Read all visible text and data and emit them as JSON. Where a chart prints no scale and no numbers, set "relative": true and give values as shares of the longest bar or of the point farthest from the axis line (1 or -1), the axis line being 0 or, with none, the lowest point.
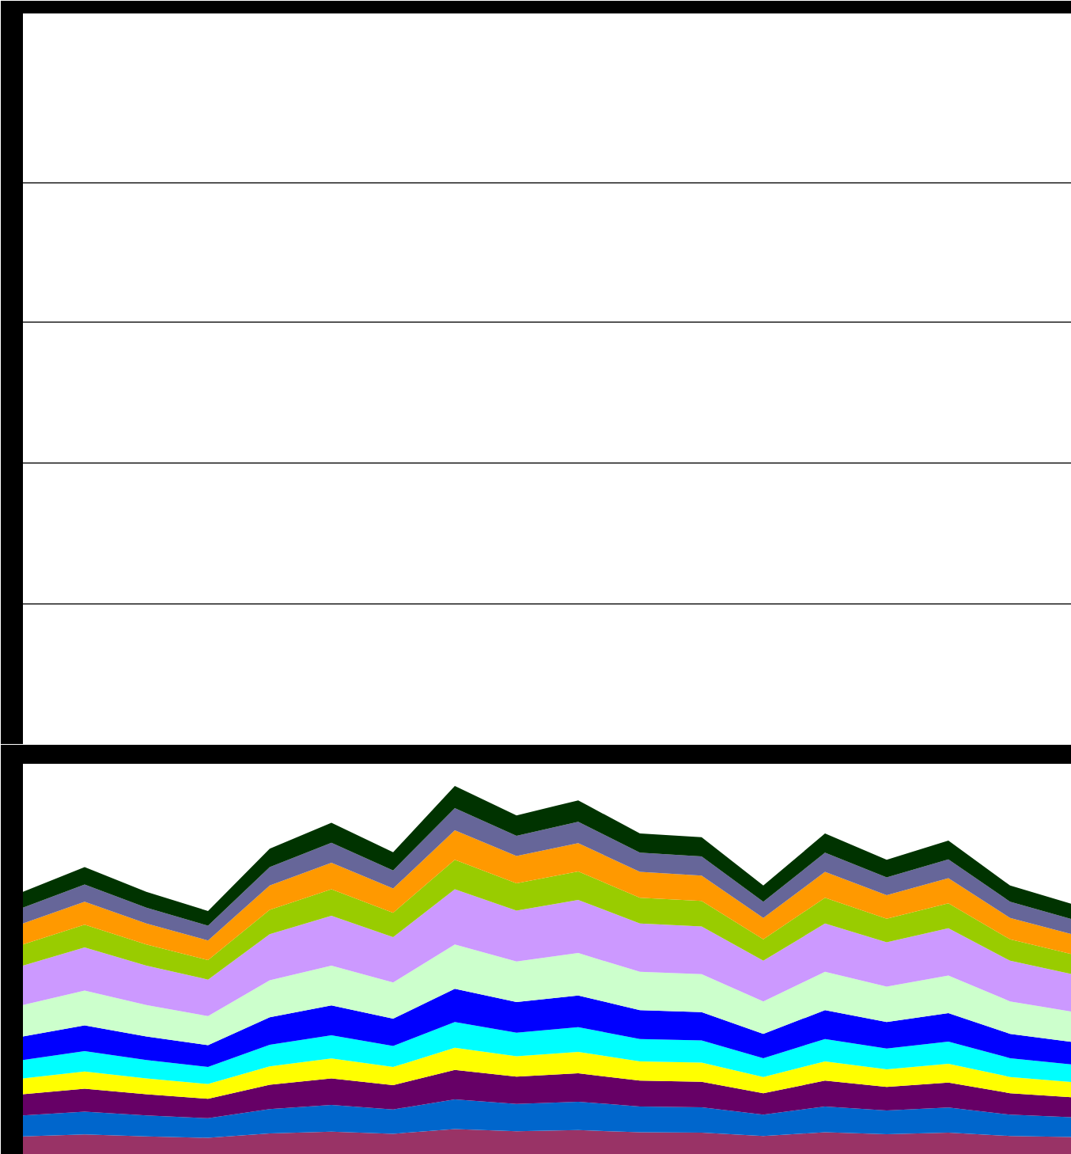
{
  "chart_data": [
    {
      "type": "other"
    },
    {
      "type": "area",
      "stacked": true,
      "relative": true,
      "categories": [
        null,
        null,
        null,
        null,
        null,
        null,
        null,
        null,
        null,
        null,
        null,
        null,
        null,
        null,
        null,
        null,
        null,
        null
      ],
      "series": [
        {
          "color": "#993366",
          "values": [
            0.05,
            0.055,
            0.05,
            0.046,
            0.058,
            0.063,
            0.057,
            0.07,
            0.064,
            0.067,
            0.061,
            0.06,
            0.051,
            0.061,
            0.056,
            0.06,
            0.051,
            0.048
          ]
        },
        {
          "color": "#0066cc",
          "values": [
            0.057,
            0.062,
            0.057,
            0.053,
            0.066,
            0.072,
            0.066,
            0.08,
            0.074,
            0.077,
            0.07,
            0.069,
            0.058,
            0.07,
            0.064,
            0.068,
            0.058,
            0.054
          ]
        },
        {
          "color": "#660066",
          "values": [
            0.057,
            0.062,
            0.057,
            0.053,
            0.066,
            0.072,
            0.066,
            0.08,
            0.074,
            0.077,
            0.07,
            0.069,
            0.058,
            0.07,
            0.064,
            0.068,
            0.058,
            0.054
          ]
        },
        {
          "color": "#ffff00",
          "values": [
            0.043,
            0.047,
            0.043,
            0.04,
            0.05,
            0.054,
            0.049,
            0.06,
            0.055,
            0.058,
            0.052,
            0.052,
            0.044,
            0.052,
            0.048,
            0.051,
            0.044,
            0.041
          ]
        },
        {
          "color": "#00ffff",
          "values": [
            0.05,
            0.055,
            0.05,
            0.046,
            0.058,
            0.063,
            0.057,
            0.07,
            0.064,
            0.067,
            0.061,
            0.06,
            0.051,
            0.061,
            0.056,
            0.06,
            0.051,
            0.048
          ]
        },
        {
          "color": "#0000ff",
          "values": [
            0.064,
            0.07,
            0.064,
            0.059,
            0.075,
            0.081,
            0.074,
            0.09,
            0.083,
            0.086,
            0.078,
            0.077,
            0.066,
            0.078,
            0.072,
            0.077,
            0.066,
            0.061
          ]
        },
        {
          "color": "#ccffcc",
          "values": [
            0.085,
            0.094,
            0.085,
            0.079,
            0.1,
            0.108,
            0.098,
            0.12,
            0.11,
            0.115,
            0.104,
            0.103,
            0.088,
            0.104,
            0.096,
            0.102,
            0.088,
            0.082
          ]
        },
        {
          "color": "#cc99ff",
          "values": [
            0.107,
            0.117,
            0.107,
            0.099,
            0.125,
            0.135,
            0.123,
            0.15,
            0.138,
            0.144,
            0.131,
            0.129,
            0.11,
            0.131,
            0.12,
            0.128,
            0.11,
            0.102
          ]
        },
        {
          "color": "#99cc00",
          "values": [
            0.057,
            0.062,
            0.057,
            0.053,
            0.066,
            0.072,
            0.066,
            0.08,
            0.074,
            0.077,
            0.07,
            0.069,
            0.058,
            0.07,
            0.064,
            0.068,
            0.058,
            0.054
          ]
        },
        {
          "color": "#ff9900",
          "values": [
            0.057,
            0.062,
            0.057,
            0.053,
            0.066,
            0.072,
            0.066,
            0.08,
            0.074,
            0.077,
            0.07,
            0.069,
            0.058,
            0.07,
            0.064,
            0.068,
            0.058,
            0.054
          ]
        },
        {
          "color": "#666699",
          "values": [
            0.043,
            0.047,
            0.043,
            0.04,
            0.05,
            0.054,
            0.049,
            0.06,
            0.055,
            0.058,
            0.052,
            0.052,
            0.044,
            0.052,
            0.048,
            0.051,
            0.044,
            0.041
          ]
        },
        {
          "color": "#003300",
          "values": [
            0.043,
            0.047,
            0.043,
            0.04,
            0.05,
            0.054,
            0.049,
            0.06,
            0.055,
            0.058,
            0.052,
            0.052,
            0.044,
            0.052,
            0.048,
            0.051,
            0.044,
            0.041
          ]
        }
      ]
    }
  ]
}
